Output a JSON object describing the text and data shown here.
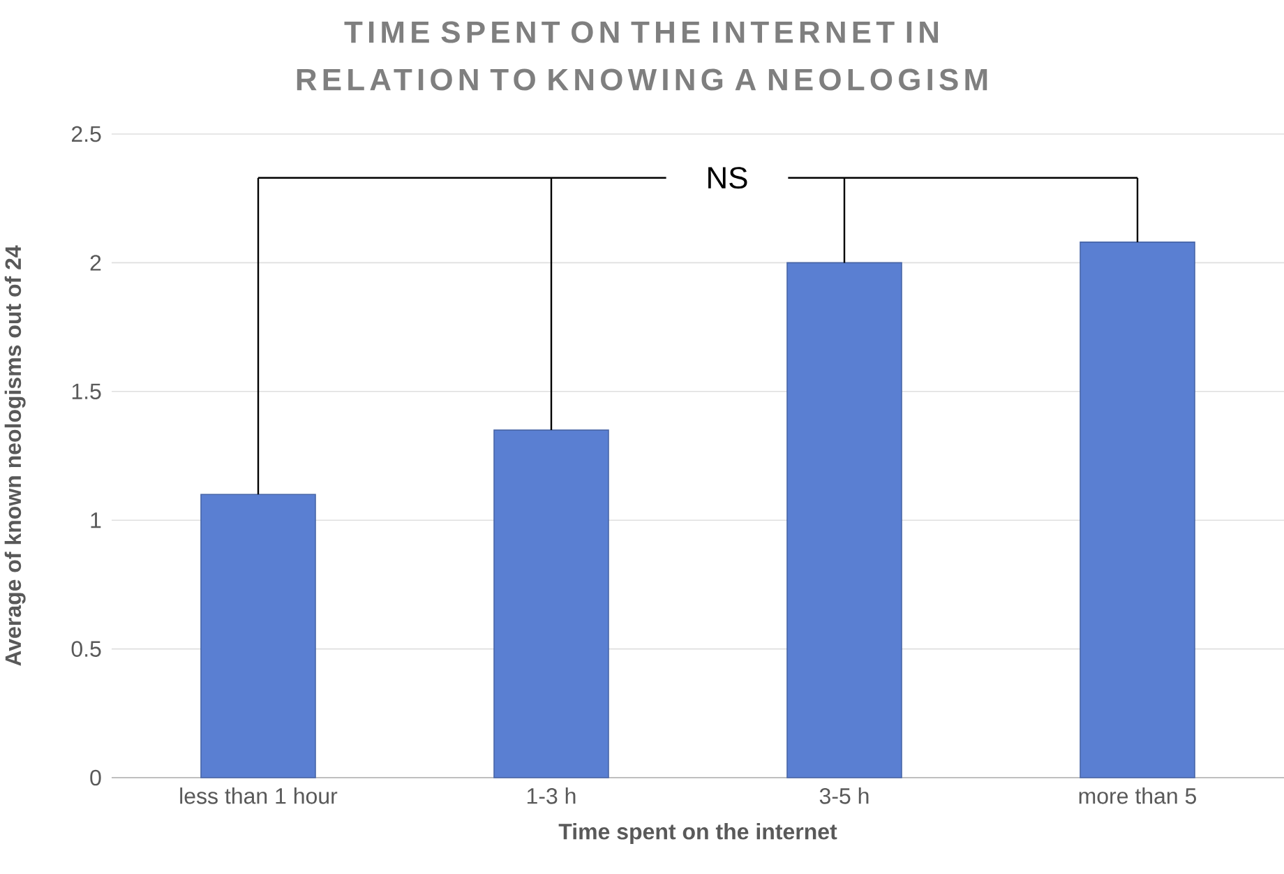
{
  "chart_data": {
    "type": "bar",
    "title": "TIME SPENT ON THE INTERNET IN RELATION TO KNOWING A NEOLOGISM",
    "xlabel": "Time spent on the internet",
    "ylabel": "Average of known neologisms out of 24",
    "categories": [
      "less than 1 hour",
      "1-3 h",
      "3-5 h",
      "more than 5"
    ],
    "values": [
      1.1,
      1.35,
      2.0,
      2.08
    ],
    "color": "#5a7fd2",
    "ylim": [
      0,
      2.5
    ],
    "yticks": [
      0,
      0.5,
      1,
      1.5,
      2,
      2.5
    ],
    "grid": "y",
    "annotations": [
      "NS"
    ]
  }
}
